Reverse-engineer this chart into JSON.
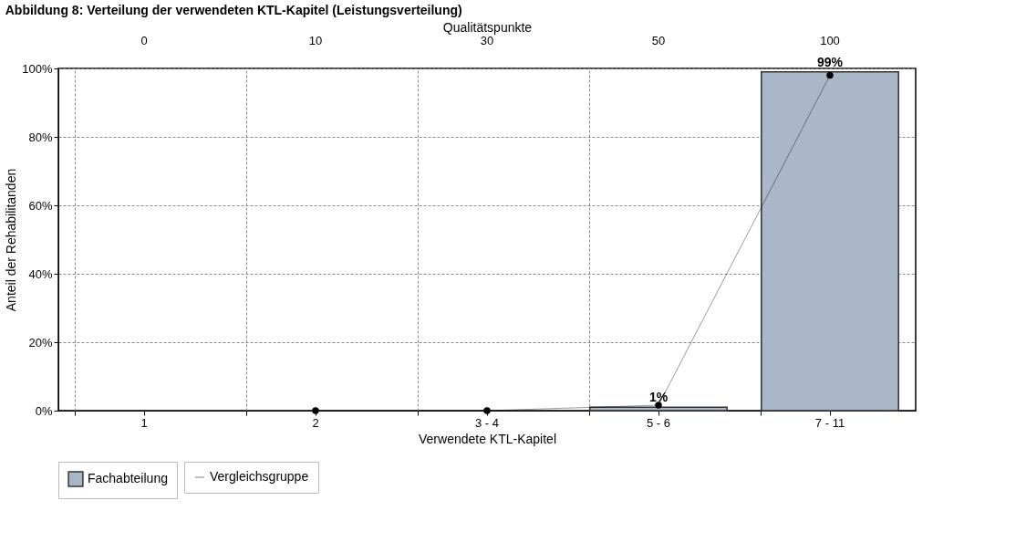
{
  "chart_data": {
    "type": "bar",
    "title": "Abbildung 8: Verteilung der verwendeten KTL-Kapitel (Leistungsverteilung)",
    "xlabel": "Verwendete KTL-Kapitel",
    "ylabel": "Anteil der Rehabilitanden",
    "x2label": "Qualitätspunkte",
    "annotations": [
      "0",
      "10",
      "30",
      "50",
      "100"
    ],
    "categories": [
      "1",
      "2",
      "3 - 4",
      "5 - 6",
      "7 - 11"
    ],
    "ylim": [
      0,
      100
    ],
    "yticks": [
      {
        "value": 0,
        "label": "0%"
      },
      {
        "value": 20,
        "label": "20%"
      },
      {
        "value": 40,
        "label": "40%"
      },
      {
        "value": 60,
        "label": "60%"
      },
      {
        "value": 80,
        "label": "80%"
      },
      {
        "value": 100,
        "label": "100%"
      }
    ],
    "series": [
      {
        "name": "Fachabteilung",
        "color": "#aab7c8",
        "values": [
          0,
          0,
          0,
          1,
          99
        ],
        "value_labels": [
          null,
          null,
          null,
          "1%",
          "99%"
        ]
      },
      {
        "name": "Vergleichsgruppe",
        "type": "line",
        "color": "#000000",
        "marker": "circle",
        "values": [
          null,
          0,
          0,
          1.6,
          98
        ]
      }
    ],
    "grid": true,
    "legend": "bottom"
  }
}
